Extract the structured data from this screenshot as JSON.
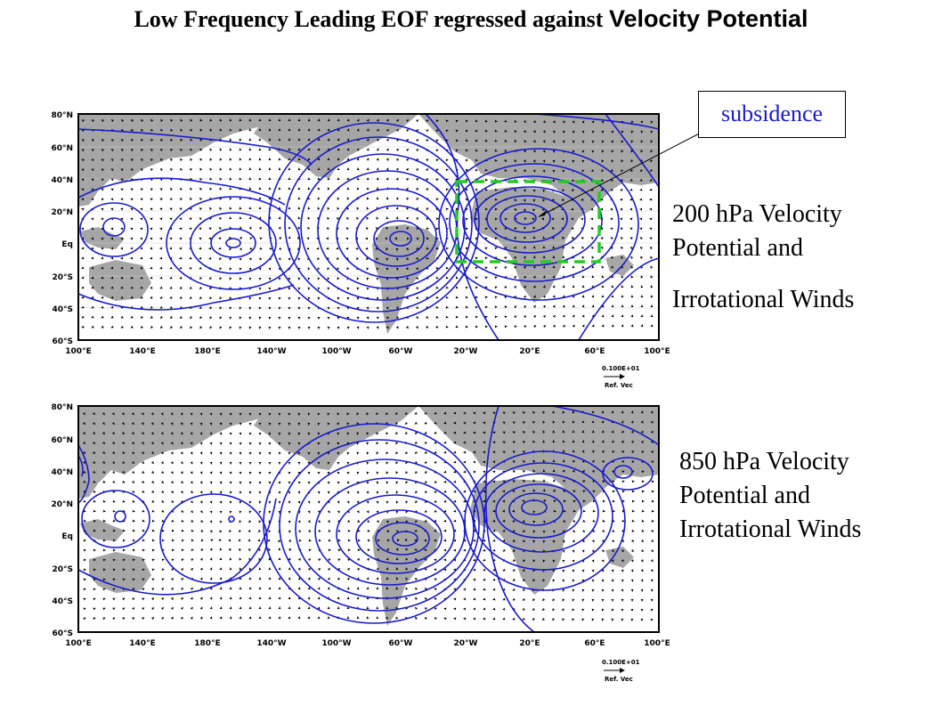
{
  "title": {
    "part1": "Low Frequency Leading EOF regressed against",
    "part2": "Velocity Potential"
  },
  "callout": {
    "label": "subsidence"
  },
  "panels": [
    {
      "id": "top",
      "lat_labels": [
        "80°N",
        "60°N",
        "40°N",
        "20°N",
        "Eq",
        "20°S",
        "40°S",
        "60°S"
      ],
      "lon_labels": [
        "100°E",
        "140°E",
        "180°E",
        "140°W",
        "100°W",
        "60°W",
        "20°W",
        "20°E",
        "60°E",
        "100°E"
      ],
      "ref_vec_value": "0.100E+01",
      "ref_vec_label": "Ref. Vec",
      "caption": [
        "200 hPa Velocity",
        "Potential  and",
        "Irrotational Winds"
      ]
    },
    {
      "id": "bottom",
      "lat_labels": [
        "80°N",
        "60°N",
        "40°N",
        "20°N",
        "Eq",
        "20°S",
        "40°S",
        "60°S"
      ],
      "lon_labels": [
        "100°E",
        "140°E",
        "180°E",
        "140°W",
        "100°W",
        "60°W",
        "20°W",
        "20°E",
        "60°E",
        "100°E"
      ],
      "ref_vec_value": "0.100E+01",
      "ref_vec_label": "Ref. Vec",
      "caption": [
        "850 hPa Velocity",
        "Potential and",
        "Irrotational Winds"
      ]
    }
  ],
  "colors": {
    "contour": "#1a1acc",
    "land": "#a6a6a6",
    "highlight_box": "#22cc22",
    "arrow": "#000000"
  }
}
